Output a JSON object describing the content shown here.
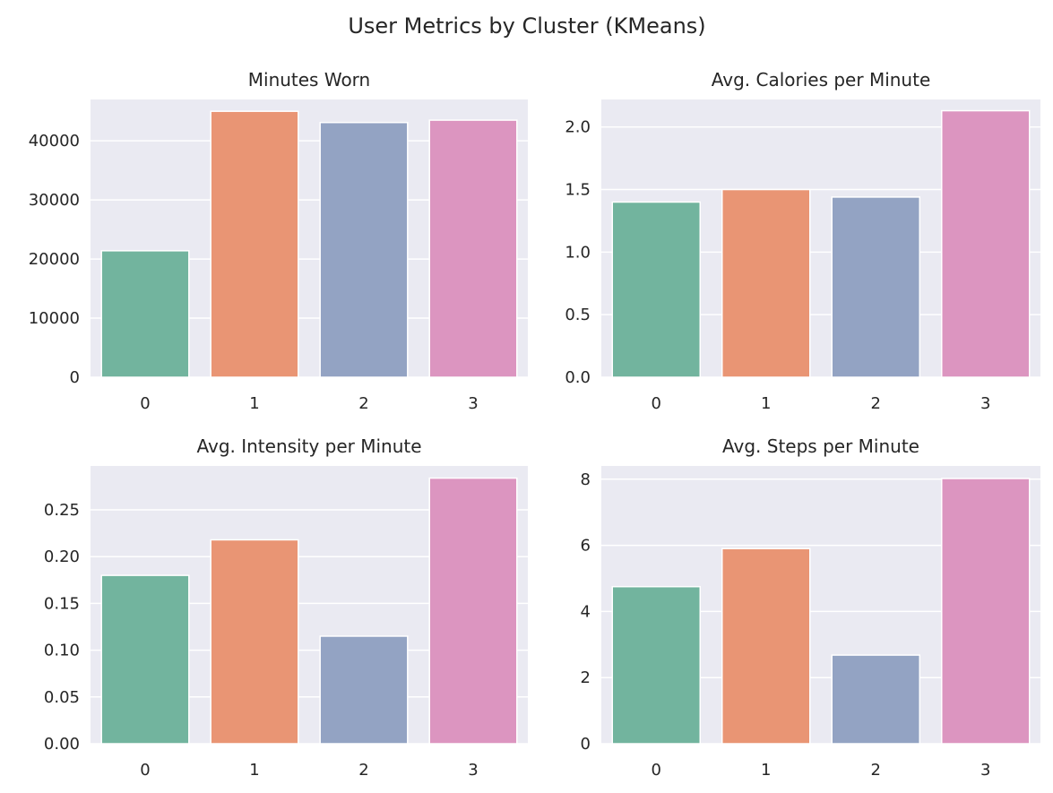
{
  "figure": {
    "title": "User Metrics by Cluster (KMeans)",
    "style": {
      "background": "#ffffff",
      "panel_background": "#eaeaf2",
      "grid_color": "#ffffff",
      "text_color": "#262626",
      "bar_edge": "#ffffff"
    },
    "palette": [
      "#72b49e",
      "#e99574",
      "#93a3c3",
      "#dc95c0"
    ]
  },
  "chart_data": [
    {
      "type": "bar",
      "title": "Minutes Worn",
      "categories": [
        "0",
        "1",
        "2",
        "3"
      ],
      "values": [
        21400,
        45000,
        43100,
        43500
      ],
      "ylim": [
        0,
        47000
      ],
      "yticks": [
        0,
        10000,
        20000,
        30000,
        40000
      ],
      "ytick_labels": [
        "0",
        "10000",
        "20000",
        "30000",
        "40000"
      ],
      "xlabel": "",
      "ylabel": "",
      "grid": true
    },
    {
      "type": "bar",
      "title": "Avg. Calories per Minute",
      "categories": [
        "0",
        "1",
        "2",
        "3"
      ],
      "values": [
        1.4,
        1.5,
        1.44,
        2.13
      ],
      "ylim": [
        0,
        2.22
      ],
      "yticks": [
        0,
        0.5,
        1.0,
        1.5,
        2.0
      ],
      "ytick_labels": [
        "0.0",
        "0.5",
        "1.0",
        "1.5",
        "2.0"
      ],
      "xlabel": "",
      "ylabel": "",
      "grid": true
    },
    {
      "type": "bar",
      "title": "Avg. Intensity per Minute",
      "categories": [
        "0",
        "1",
        "2",
        "3"
      ],
      "values": [
        0.18,
        0.218,
        0.115,
        0.284
      ],
      "ylim": [
        0,
        0.297
      ],
      "yticks": [
        0,
        0.05,
        0.1,
        0.15,
        0.2,
        0.25
      ],
      "ytick_labels": [
        "0.00",
        "0.05",
        "0.10",
        "0.15",
        "0.20",
        "0.25"
      ],
      "xlabel": "",
      "ylabel": "",
      "grid": true
    },
    {
      "type": "bar",
      "title": "Avg. Steps per Minute",
      "categories": [
        "0",
        "1",
        "2",
        "3"
      ],
      "values": [
        4.75,
        5.9,
        2.68,
        8.02
      ],
      "ylim": [
        0,
        8.4
      ],
      "yticks": [
        0,
        2,
        4,
        6,
        8
      ],
      "ytick_labels": [
        "0",
        "2",
        "4",
        "6",
        "8"
      ],
      "xlabel": "",
      "ylabel": "",
      "grid": true
    }
  ]
}
